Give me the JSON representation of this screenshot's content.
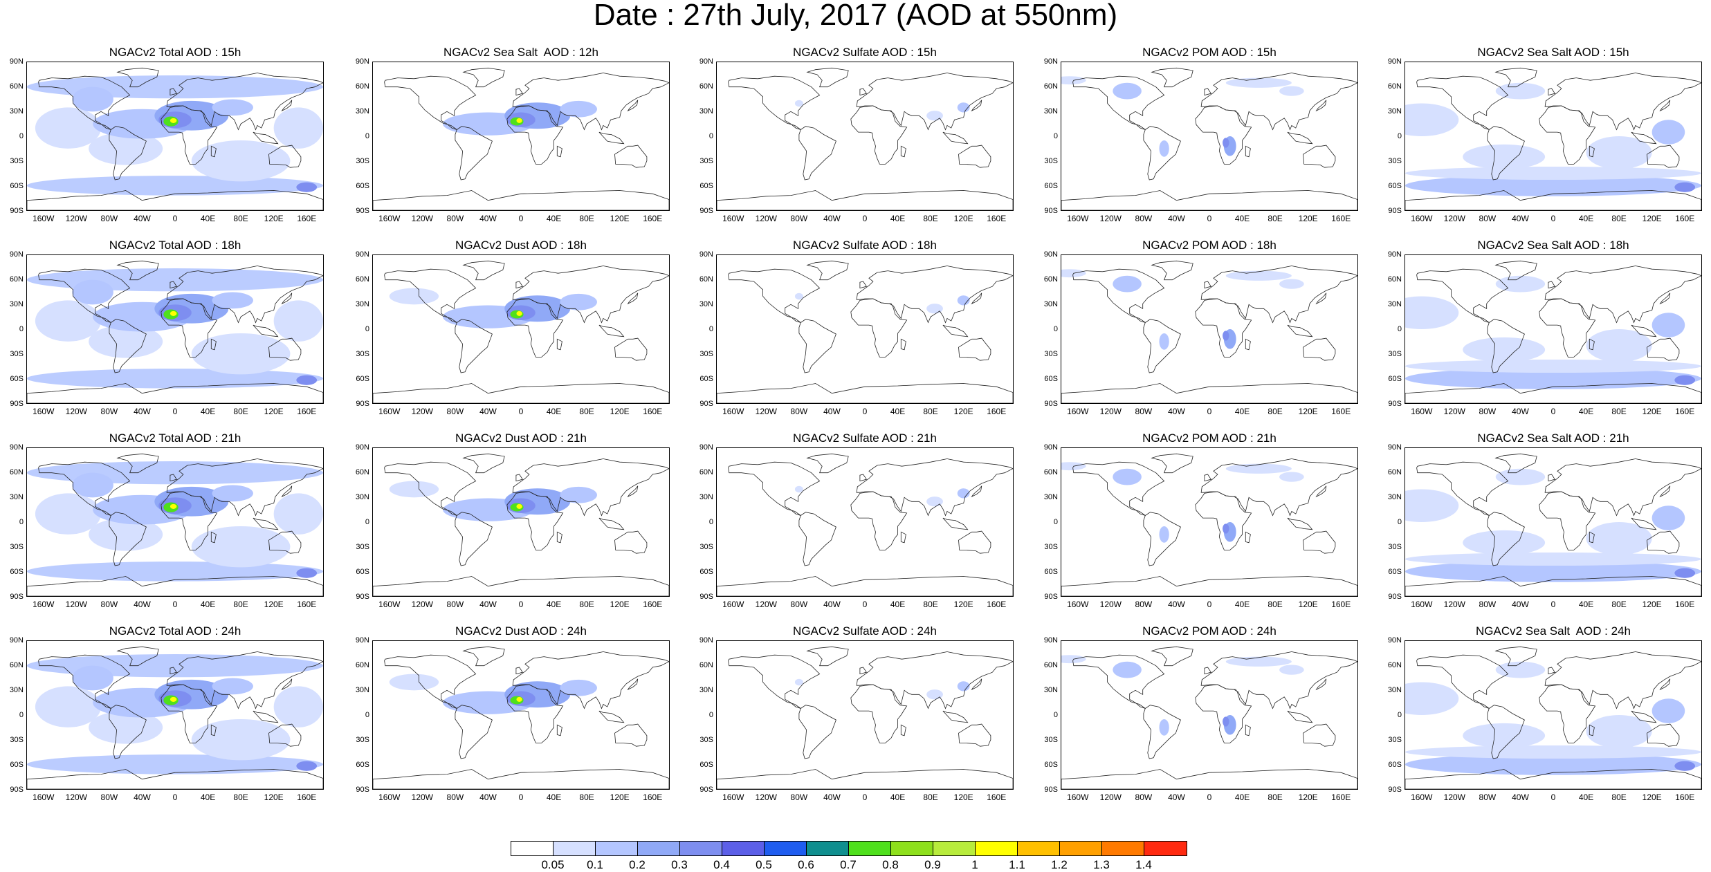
{
  "title": "Date : 27th July, 2017 (AOD at 550nm)",
  "lat_labels": [
    "90N",
    "60N",
    "30N",
    "0",
    "30S",
    "60S",
    "90S"
  ],
  "lon_labels": [
    "160W",
    "120W",
    "80W",
    "40W",
    "0",
    "40E",
    "80E",
    "120E",
    "160E"
  ],
  "panel_titles": [
    [
      "NGACv2 Total AOD : 15h",
      "NGACv2 Sea Salt  AOD : 12h",
      "NGACv2 Sulfate AOD : 15h",
      "NGACv2 POM AOD : 15h",
      "NGACv2 Sea Salt AOD : 15h"
    ],
    [
      "NGACv2 Total AOD : 18h",
      "NGACv2 Dust AOD : 18h",
      "NGACv2 Sulfate AOD : 18h",
      "NGACv2 POM AOD : 18h",
      "NGACv2 Sea Salt AOD : 18h"
    ],
    [
      "NGACv2 Total AOD : 21h",
      "NGACv2 Dust AOD : 21h",
      "NGACv2 Sulfate AOD : 21h",
      "NGACv2 POM AOD : 21h",
      "NGACv2 Sea Salt AOD : 21h"
    ],
    [
      "NGACv2 Total AOD : 24h",
      "NGACv2 Dust AOD : 24h",
      "NGACv2 Sulfate AOD : 24h",
      "NGACv2 POM AOD : 24h",
      "NGACv2 Sea Salt  AOD : 24h"
    ]
  ],
  "colorbar": {
    "labels": [
      "0.05",
      "0.1",
      "0.2",
      "0.3",
      "0.4",
      "0.5",
      "0.6",
      "0.7",
      "0.8",
      "0.9",
      "1",
      "1.1",
      "1.2",
      "1.3",
      "1.4"
    ],
    "colors": [
      "#ffffff",
      "#d6e0ff",
      "#b4c6ff",
      "#90a9f7",
      "#7e8ef0",
      "#5c5fe8",
      "#1f5df0",
      "#0f8f8f",
      "#4fe01c",
      "#8ee01c",
      "#b8ec3c",
      "#ffff00",
      "#ffc000",
      "#ffa000",
      "#ff7a00",
      "#ff2a10"
    ]
  },
  "colors": {
    "frame": "#000000",
    "coast": "#222222"
  }
}
